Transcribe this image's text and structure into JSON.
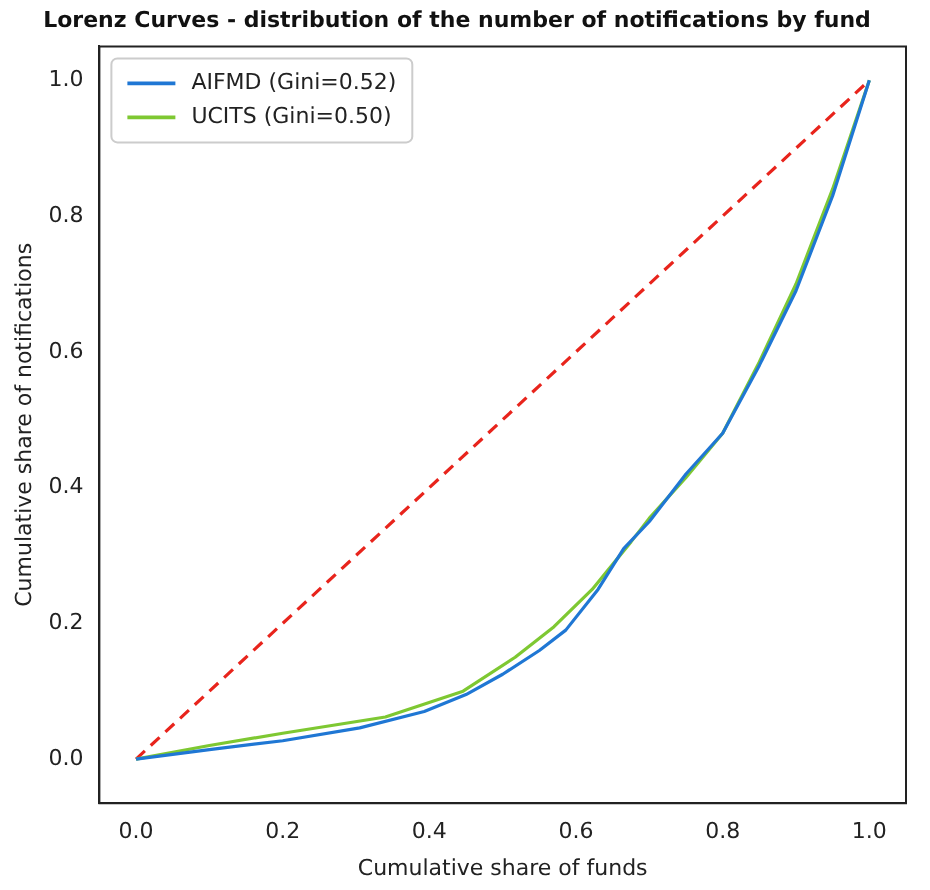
{
  "chart_data": {
    "type": "line",
    "title": "Lorenz Curves - distribution of the number of notifications by fund",
    "xlabel": "Cumulative share of funds",
    "ylabel": "Cumulative share of notifications",
    "series": [
      {
        "name": "AIFMD (Gini=0.52)",
        "color": "#1f77d4",
        "x": [
          0,
          0.1,
          0.2,
          0.305,
          0.393,
          0.45,
          0.5,
          0.55,
          0.586,
          0.63,
          0.665,
          0.7,
          0.75,
          0.8,
          0.85,
          0.9,
          0.95,
          1
        ],
        "values": [
          0,
          0.014,
          0.027,
          0.046,
          0.07,
          0.095,
          0.125,
          0.16,
          0.19,
          0.25,
          0.31,
          0.35,
          0.42,
          0.48,
          0.58,
          0.69,
          0.83,
          1
        ]
      },
      {
        "name": "UCITS (Gini=0.50)",
        "color": "#7ec832",
        "x": [
          0,
          0.1,
          0.2,
          0.34,
          0.446,
          0.517,
          0.57,
          0.622,
          0.675,
          0.7,
          0.75,
          0.8,
          0.85,
          0.9,
          0.95,
          1
        ],
        "values": [
          0,
          0.02,
          0.038,
          0.062,
          0.1,
          0.15,
          0.195,
          0.25,
          0.32,
          0.355,
          0.415,
          0.48,
          0.585,
          0.7,
          0.84,
          1
        ]
      },
      {
        "type": "line",
        "color": "#e8241c",
        "line_style": "dashed",
        "x": [
          0,
          1
        ],
        "values": [
          0,
          1
        ]
      }
    ],
    "xlim": [
      -0.05,
      1.05
    ],
    "ylim": [
      -0.065,
      1.05
    ],
    "xticks": [
      {
        "value": 0,
        "label": "0.0"
      },
      {
        "value": 0.2,
        "label": "0.2"
      },
      {
        "value": 0.4,
        "label": "0.4"
      },
      {
        "value": 0.6,
        "label": "0.6"
      },
      {
        "value": 0.8,
        "label": "0.8"
      },
      {
        "value": 1,
        "label": "1.0"
      }
    ],
    "yticks": [
      {
        "value": 0,
        "label": "0.0"
      },
      {
        "value": 0.2,
        "label": "0.2"
      },
      {
        "value": 0.4,
        "label": "0.4"
      },
      {
        "value": 0.6,
        "label": "0.6"
      },
      {
        "value": 0.8,
        "label": "0.8"
      },
      {
        "value": 1,
        "label": "1.0"
      }
    ],
    "grid": false,
    "legend": "top left",
    "marker": "none",
    "line_style": "solid"
  }
}
